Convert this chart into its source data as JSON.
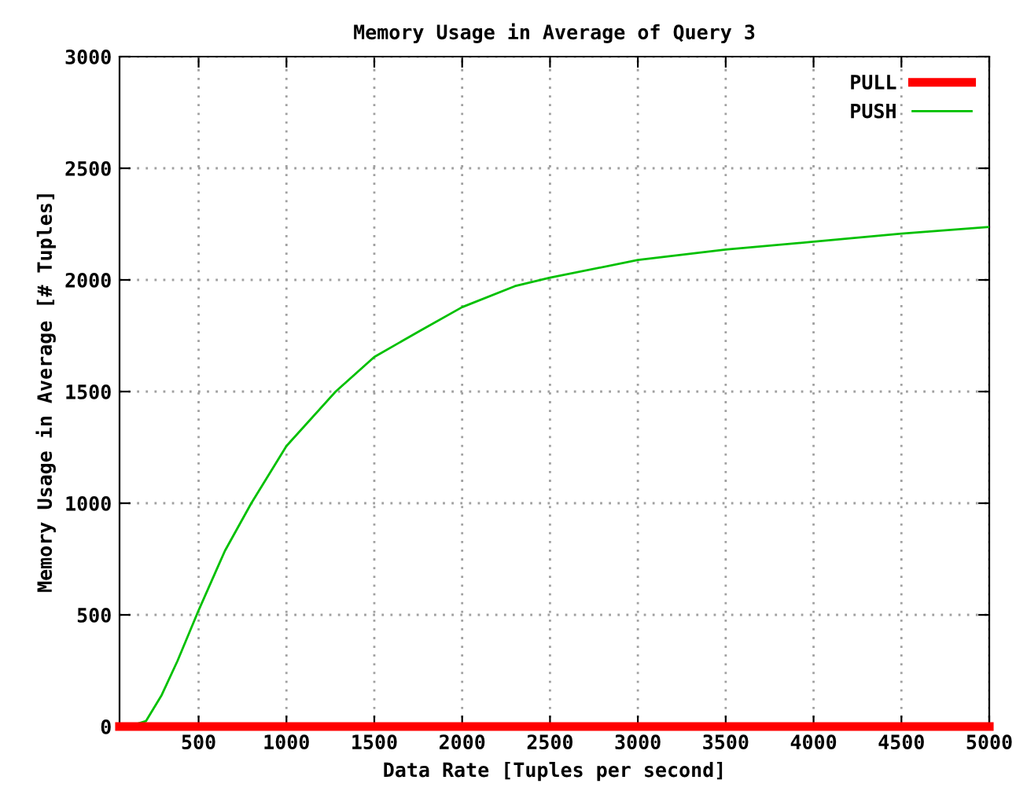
{
  "chart_data": {
    "type": "line",
    "title": "Memory Usage in Average of Query 3",
    "xlabel": "Data Rate [Tuples per second]",
    "ylabel": "Memory Usage in Average [# Tuples]",
    "series": [
      {
        "name": "PULL",
        "color": "#ff0000",
        "x": [
          50,
          5000
        ],
        "values": [
          0,
          0
        ]
      },
      {
        "name": "PUSH",
        "color": "#00c000",
        "x": [
          100,
          200,
          290,
          380,
          500,
          610,
          650,
          800,
          1000,
          1280,
          1500,
          1760,
          2000,
          2300,
          2500,
          3000,
          3500,
          4000,
          4500,
          5000
        ],
        "values": [
          0,
          24,
          141,
          294,
          520,
          716,
          787,
          1000,
          1256,
          1500,
          1655,
          1772,
          1878,
          1972,
          2010,
          2089,
          2136,
          2171,
          2207,
          2237
        ]
      }
    ],
    "xlim": [
      50,
      5000
    ],
    "xticks": [
      500,
      1000,
      1500,
      2000,
      2500,
      3000,
      3500,
      4000,
      4500,
      5000
    ],
    "ylim": [
      0,
      3000
    ],
    "yticks": [
      0,
      500,
      1000,
      1500,
      2000,
      2500,
      3000
    ],
    "grid": true,
    "legend": "top right",
    "marker": "none",
    "line_style": "solid"
  }
}
